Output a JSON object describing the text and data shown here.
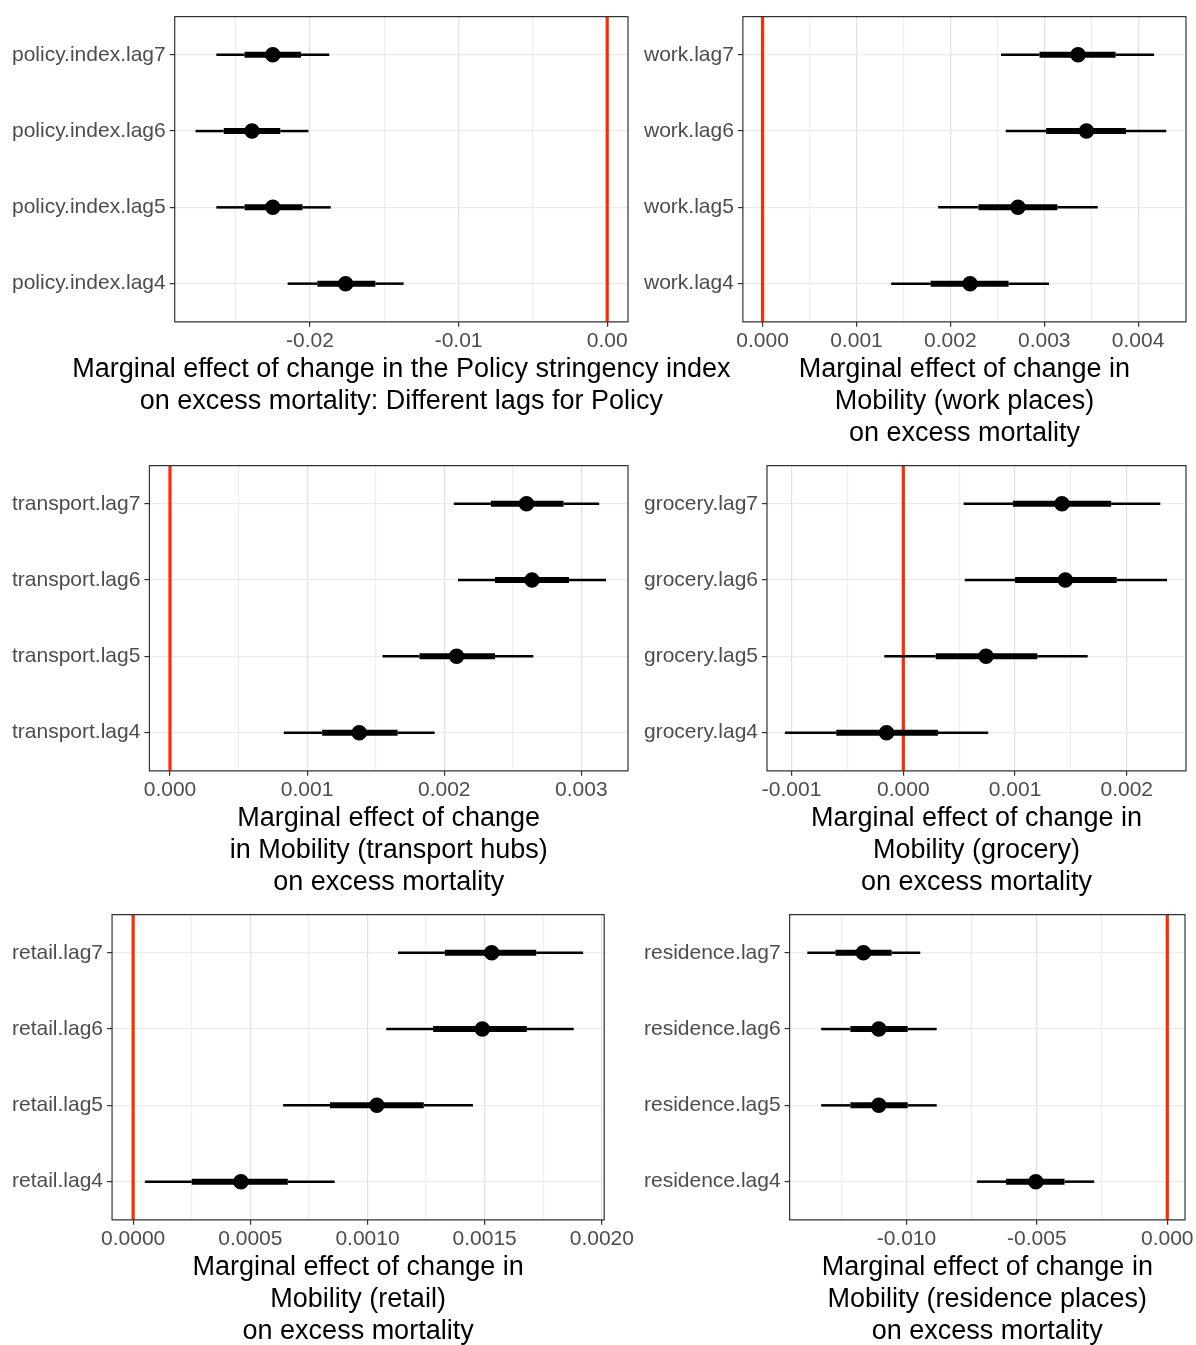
{
  "chart_data": [
    {
      "type": "box",
      "orientation": "horizontal",
      "xlabel": "Marginal effect of change in the Policy stringency index\non excess mortality: Different lags for Policy",
      "categories": [
        "policy.index.lag7",
        "policy.index.lag6",
        "policy.index.lag5",
        "policy.index.lag4"
      ],
      "color": "#000000",
      "marker": "circle",
      "grid": true,
      "xlim": [
        -0.0291,
        0.0014
      ],
      "xticks": [
        {
          "value": -0.025,
          "label": null
        },
        {
          "value": -0.02,
          "label": "-0.02"
        },
        {
          "value": -0.015,
          "label": null
        },
        {
          "value": -0.01,
          "label": "-0.01"
        },
        {
          "value": -0.005,
          "label": null
        },
        {
          "value": 0,
          "label": "0.00"
        }
      ],
      "ref_lines": [
        {
          "axis": "x",
          "value": 0,
          "color": "#ff2a00"
        }
      ],
      "boxes": [
        {
          "low": -0.0263,
          "q1": -0.0244,
          "median": -0.0225,
          "q3": -0.0206,
          "high": -0.0187
        },
        {
          "low": -0.0277,
          "q1": -0.0258,
          "median": -0.0239,
          "q3": -0.022,
          "high": -0.0201
        },
        {
          "low": -0.0263,
          "q1": -0.0244,
          "median": -0.0225,
          "q3": -0.0205,
          "high": -0.0186
        },
        {
          "low": -0.0215,
          "q1": -0.0195,
          "median": -0.0176,
          "q3": -0.0156,
          "high": -0.0137
        }
      ]
    },
    {
      "type": "box",
      "orientation": "horizontal",
      "xlabel": "Marginal effect of change in\nMobility (work places)\non excess mortality",
      "categories": [
        "work.lag7",
        "work.lag6",
        "work.lag5",
        "work.lag4"
      ],
      "color": "#000000",
      "marker": "circle",
      "grid": true,
      "xlim": [
        -0.00021,
        0.00451
      ],
      "xticks": [
        {
          "value": 0,
          "label": "0.000"
        },
        {
          "value": 0.0005,
          "label": null
        },
        0.001,
        {
          "value": 0.0015,
          "label": null
        },
        0.002,
        {
          "value": 0.0025,
          "label": null
        },
        0.003,
        {
          "value": 0.0035,
          "label": null
        },
        0.004
      ],
      "ref_lines": [
        {
          "axis": "x",
          "value": 0,
          "color": "#ff2a00"
        }
      ],
      "boxes": [
        {
          "low": 0.00254,
          "q1": 0.00295,
          "median": 0.00336,
          "q3": 0.00376,
          "high": 0.00417
        },
        {
          "low": 0.00259,
          "q1": 0.00302,
          "median": 0.00345,
          "q3": 0.00387,
          "high": 0.0043
        },
        {
          "low": 0.00187,
          "q1": 0.0023,
          "median": 0.00272,
          "q3": 0.00314,
          "high": 0.00357
        },
        {
          "low": 0.00137,
          "q1": 0.00179,
          "median": 0.00221,
          "q3": 0.00262,
          "high": 0.00305
        }
      ]
    },
    {
      "type": "box",
      "orientation": "horizontal",
      "xlabel": "Marginal effect of change\nin Mobility (transport hubs)\non excess mortality",
      "categories": [
        "transport.lag7",
        "transport.lag6",
        "transport.lag5",
        "transport.lag4"
      ],
      "color": "#000000",
      "marker": "circle",
      "grid": true,
      "xlim": [
        -0.00015,
        0.00334
      ],
      "xticks": [
        {
          "value": 0,
          "label": "0.000"
        },
        {
          "value": 0.0005,
          "label": null
        },
        0.001,
        {
          "value": 0.0015,
          "label": null
        },
        0.002,
        {
          "value": 0.0025,
          "label": null
        },
        0.003
      ],
      "ref_lines": [
        {
          "axis": "x",
          "value": 0,
          "color": "#ff2a00"
        }
      ],
      "boxes": [
        {
          "low": 0.00207,
          "q1": 0.00234,
          "median": 0.0026,
          "q3": 0.00287,
          "high": 0.00313
        },
        {
          "low": 0.0021,
          "q1": 0.00237,
          "median": 0.00264,
          "q3": 0.00291,
          "high": 0.00318
        },
        {
          "low": 0.00155,
          "q1": 0.00182,
          "median": 0.00209,
          "q3": 0.00237,
          "high": 0.00265
        },
        {
          "low": 0.00083,
          "q1": 0.00111,
          "median": 0.00138,
          "q3": 0.00166,
          "high": 0.00193
        }
      ]
    },
    {
      "type": "box",
      "orientation": "horizontal",
      "xlabel": "Marginal effect of change in\nMobility (grocery)\non excess mortality",
      "categories": [
        "grocery.lag7",
        "grocery.lag6",
        "grocery.lag5",
        "grocery.lag4"
      ],
      "color": "#000000",
      "marker": "circle",
      "grid": true,
      "xlim": [
        -0.00122,
        0.00253
      ],
      "xticks": [
        -0.001,
        {
          "value": -0.0005,
          "label": null
        },
        {
          "value": 0,
          "label": "0.000"
        },
        {
          "value": 0.0005,
          "label": null
        },
        0.001,
        {
          "value": 0.0015,
          "label": null
        },
        0.002
      ],
      "ref_lines": [
        {
          "axis": "x",
          "value": 0,
          "color": "#ff2a00"
        }
      ],
      "boxes": [
        {
          "low": 0.00054,
          "q1": 0.00098,
          "median": 0.00142,
          "q3": 0.00186,
          "high": 0.0023
        },
        {
          "low": 0.00055,
          "q1": 0.001,
          "median": 0.00145,
          "q3": 0.00191,
          "high": 0.00236
        },
        {
          "low": -0.00017,
          "q1": 0.00029,
          "median": 0.00074,
          "q3": 0.0012,
          "high": 0.00165
        },
        {
          "low": -0.00106,
          "q1": -0.0006,
          "median": -0.00015,
          "q3": 0.00031,
          "high": 0.00076
        }
      ]
    },
    {
      "type": "box",
      "orientation": "horizontal",
      "xlabel": "Marginal effect of change in\nMobility (retail)\non excess mortality",
      "categories": [
        "retail.lag7",
        "retail.lag6",
        "retail.lag5",
        "retail.lag4"
      ],
      "color": "#000000",
      "marker": "circle",
      "grid": true,
      "xlim": [
        -9e-05,
        0.00201
      ],
      "xticks": [
        {
          "value": 0,
          "label": "0.0000"
        },
        {
          "value": 0.00025,
          "label": null
        },
        {
          "value": 0.0005,
          "label": "0.0005"
        },
        {
          "value": 0.00075,
          "label": null
        },
        {
          "value": 0.001,
          "label": "0.0010"
        },
        {
          "value": 0.00125,
          "label": null
        },
        {
          "value": 0.0015,
          "label": "0.0015"
        },
        {
          "value": 0.00175,
          "label": null
        },
        {
          "value": 0.002,
          "label": "0.0020"
        }
      ],
      "ref_lines": [
        {
          "axis": "x",
          "value": 0,
          "color": "#ff2a00"
        }
      ],
      "boxes": [
        {
          "low": 0.00113,
          "q1": 0.00133,
          "median": 0.00153,
          "q3": 0.00172,
          "high": 0.00192
        },
        {
          "low": 0.00108,
          "q1": 0.00128,
          "median": 0.00149,
          "q3": 0.00168,
          "high": 0.00188
        },
        {
          "low": 0.00064,
          "q1": 0.00084,
          "median": 0.00104,
          "q3": 0.00124,
          "high": 0.00145
        },
        {
          "low": 5e-05,
          "q1": 0.00025,
          "median": 0.00046,
          "q3": 0.00066,
          "high": 0.00086
        }
      ]
    },
    {
      "type": "box",
      "orientation": "horizontal",
      "xlabel": "Marginal effect of change in\nMobility (residence places)\non excess mortality",
      "categories": [
        "residence.lag7",
        "residence.lag6",
        "residence.lag5",
        "residence.lag4"
      ],
      "color": "#000000",
      "marker": "circle",
      "grid": true,
      "xlim": [
        -0.01448,
        0.00068
      ],
      "xticks": [
        {
          "value": -0.0125,
          "label": null
        },
        {
          "value": -0.01,
          "label": "-0.010"
        },
        {
          "value": -0.0075,
          "label": null
        },
        -0.005,
        {
          "value": -0.0025,
          "label": null
        },
        {
          "value": 0,
          "label": "0.000"
        }
      ],
      "ref_lines": [
        {
          "axis": "x",
          "value": 0,
          "color": "#ff2a00"
        }
      ],
      "boxes": [
        {
          "low": -0.0138,
          "q1": -0.01272,
          "median": -0.01165,
          "q3": -0.01057,
          "high": -0.00947
        },
        {
          "low": -0.01327,
          "q1": -0.01215,
          "median": -0.01106,
          "q3": -0.00995,
          "high": -0.00884
        },
        {
          "low": -0.01327,
          "q1": -0.01215,
          "median": -0.01106,
          "q3": -0.00995,
          "high": -0.00884
        },
        {
          "low": -0.0073,
          "q1": -0.00618,
          "median": -0.00504,
          "q3": -0.00394,
          "high": -0.0028
        }
      ]
    }
  ]
}
